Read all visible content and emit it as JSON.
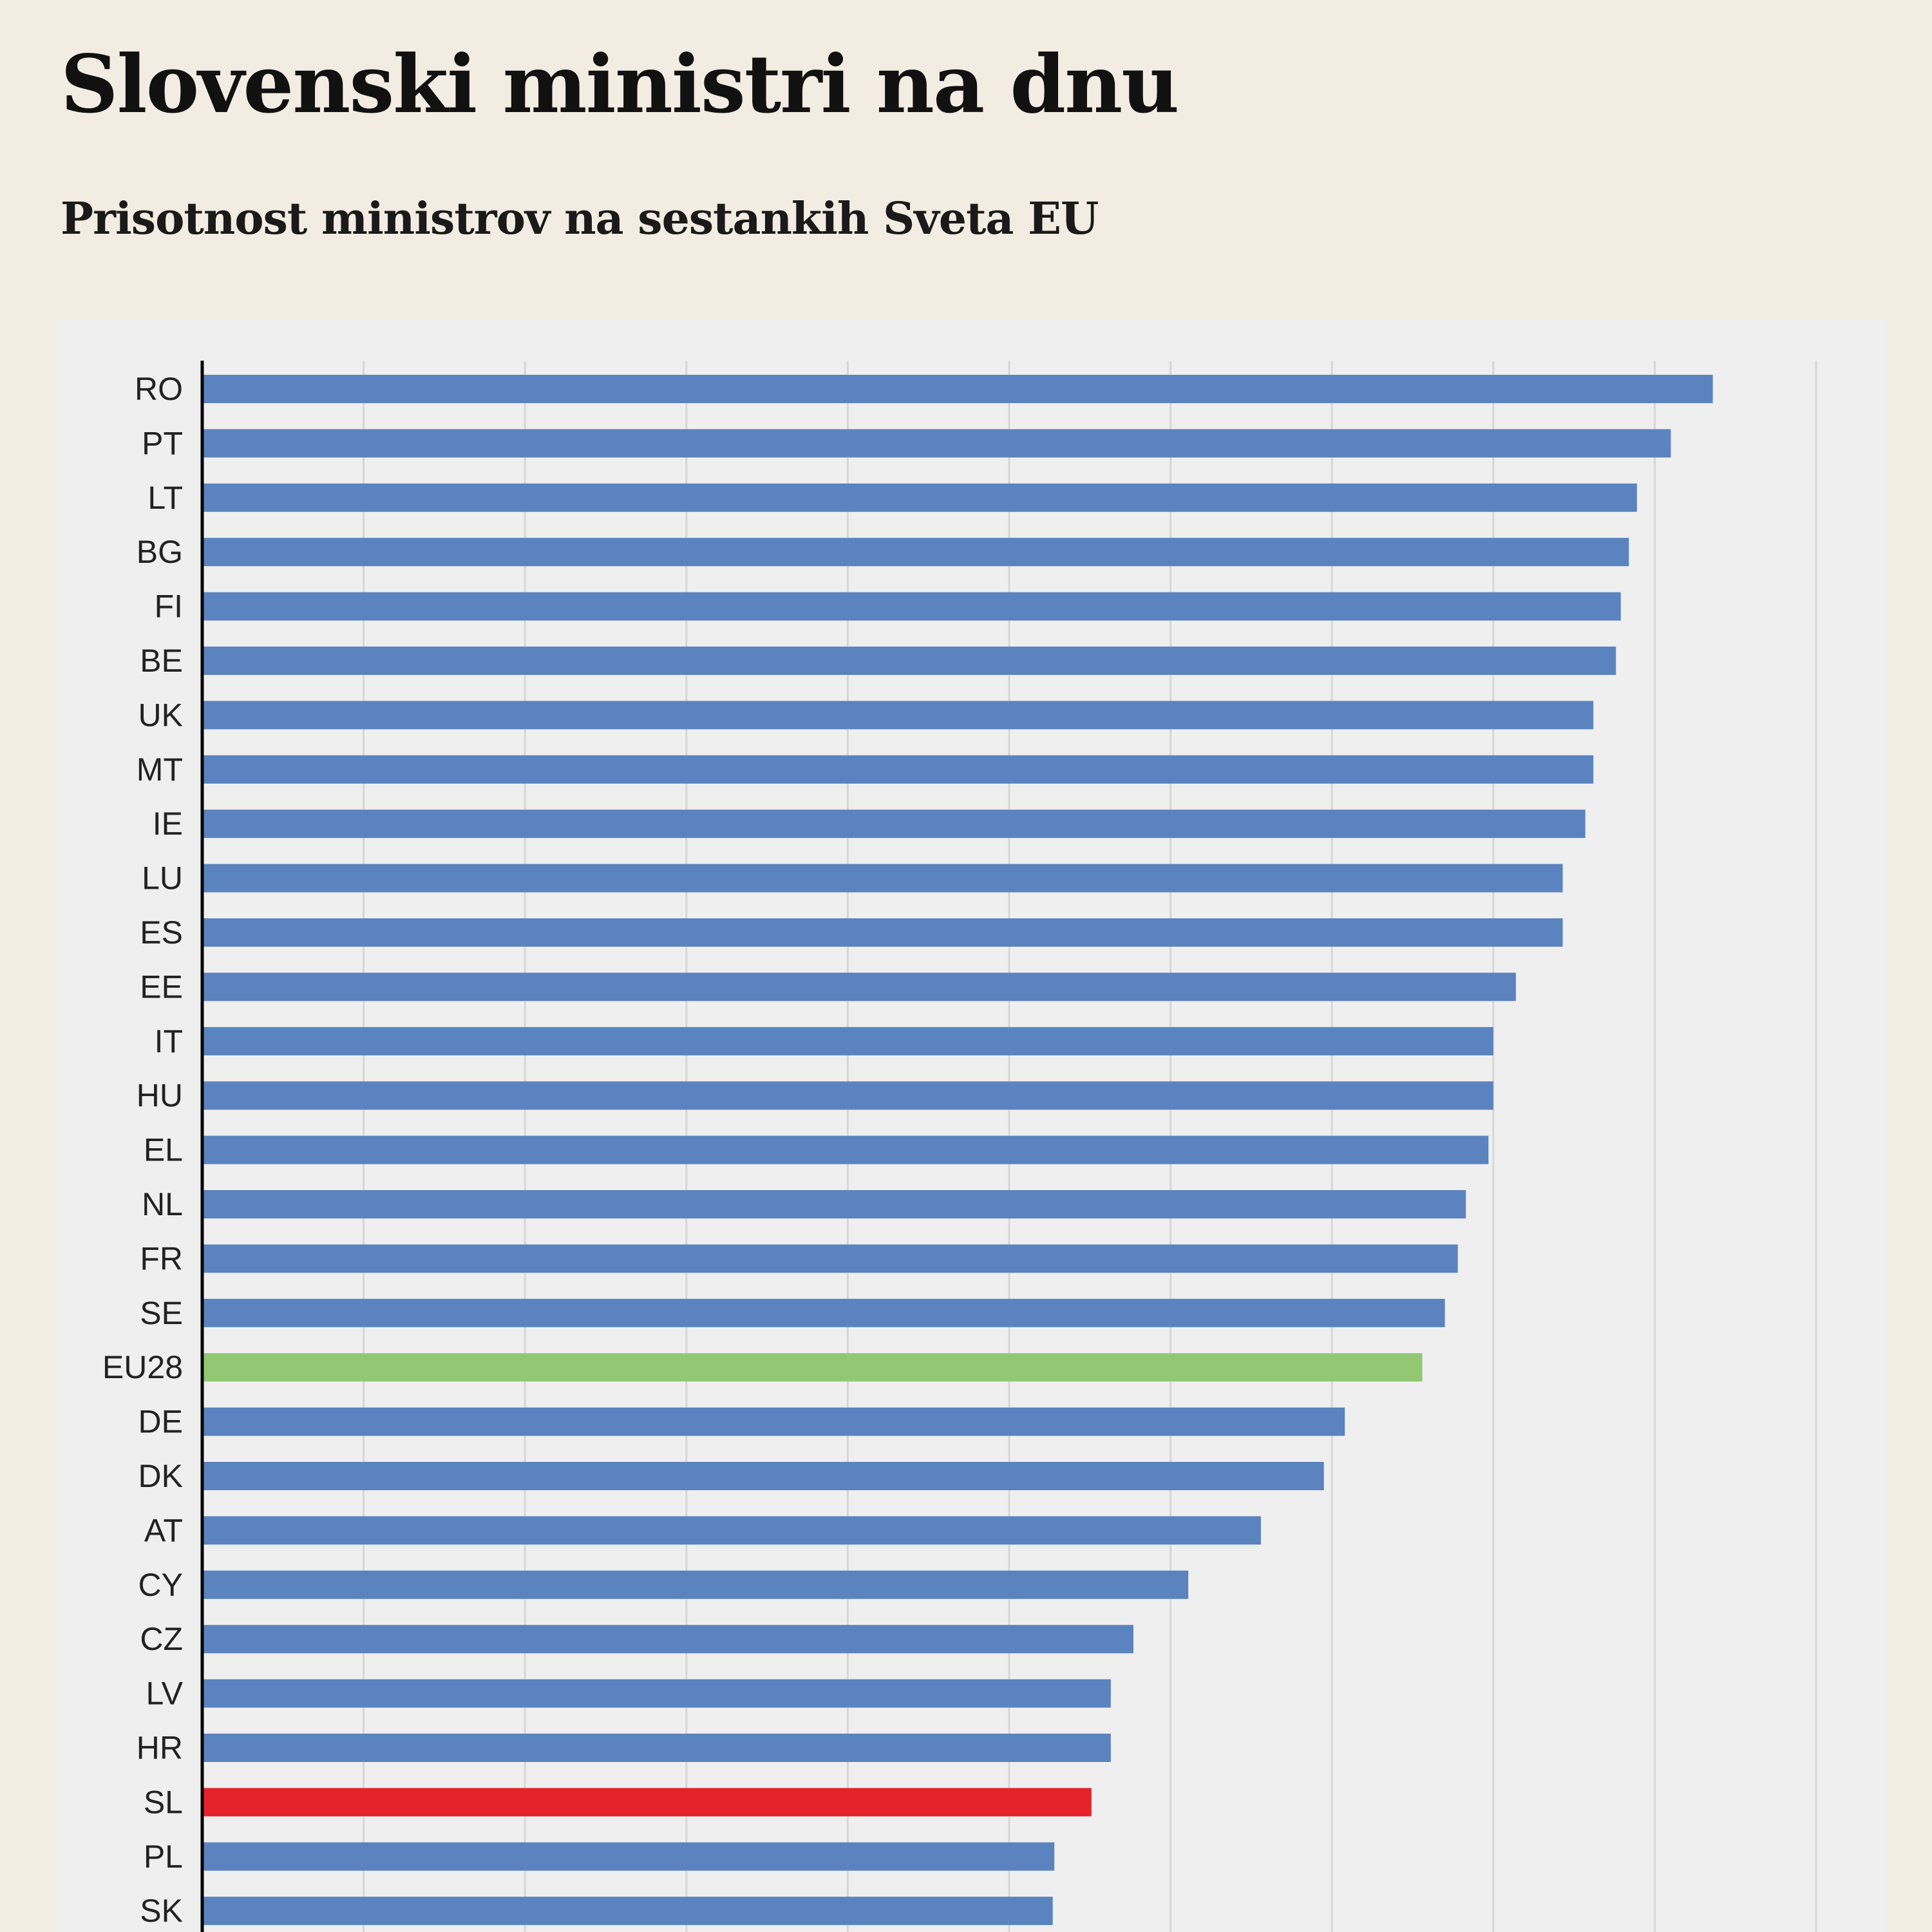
{
  "chart_data": {
    "type": "bar",
    "orientation": "horizontal",
    "title": "Slovenski ministri na dnu",
    "subtitle": "Prisotnost ministrov na sestankih Sveta EU",
    "xlabel": "",
    "ylabel": "",
    "grid": true,
    "legend": "none",
    "xlim": [
      0,
      100
    ],
    "categories": [
      "RO",
      "PT",
      "LT",
      "BG",
      "FI",
      "BE",
      "UK",
      "MT",
      "IE",
      "LU",
      "ES",
      "EE",
      "IT",
      "HU",
      "EL",
      "NL",
      "FR",
      "SE",
      "EU28",
      "DE",
      "DK",
      "AT",
      "CY",
      "CZ",
      "LV",
      "HR",
      "SL",
      "PL",
      "SK"
    ],
    "values": [
      93.6,
      91.0,
      88.9,
      88.4,
      87.9,
      87.6,
      86.2,
      86.2,
      85.7,
      84.3,
      84.3,
      81.4,
      80.0,
      80.0,
      79.7,
      78.3,
      77.8,
      77.0,
      75.6,
      70.8,
      69.5,
      65.6,
      61.1,
      57.7,
      56.3,
      56.3,
      55.1,
      52.8,
      52.7
    ],
    "colors": {
      "default": "#5a83c0",
      "EU28": "#92c873",
      "SL": "#e5232a",
      "grid": "#d7d7d7",
      "axis": "#000000"
    }
  }
}
